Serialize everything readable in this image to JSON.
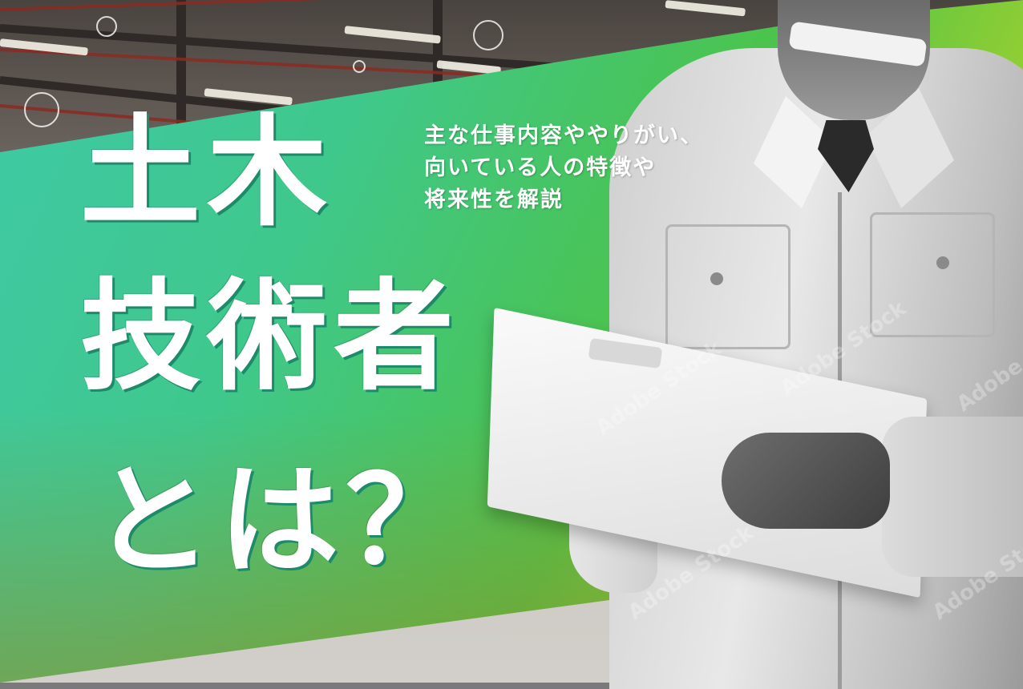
{
  "title": {
    "line1": "土木",
    "line2": "技術者",
    "line3": "とは？"
  },
  "subtitle": {
    "line1": "主な仕事内容ややりがい、",
    "line2": "向いている人の特徴や",
    "line3": "将来性を解説"
  },
  "watermark": "Adobe Stock",
  "colors": {
    "banner_start": "#3fc9a6",
    "banner_mid": "#4cc34a",
    "banner_end": "#d5d41d",
    "title_text": "#ffffff"
  }
}
